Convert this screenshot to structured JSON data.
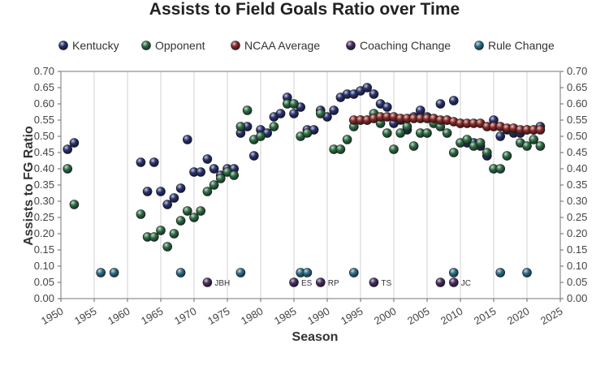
{
  "chart_data": {
    "type": "scatter",
    "title": "Assists to Field Goals Ratio over Time",
    "xlabel": "Season",
    "ylabel": "Assists to FG Ratio",
    "xlim": [
      1950,
      2025
    ],
    "ylim": [
      0,
      0.7
    ],
    "x_ticks": [
      "1950",
      "1955",
      "1960",
      "1965",
      "1970",
      "1975",
      "1980",
      "1985",
      "1990",
      "1995",
      "2000",
      "2005",
      "2010",
      "2015",
      "2020",
      "2025"
    ],
    "y_ticks": [
      "0.00",
      "0.05",
      "0.10",
      "0.15",
      "0.20",
      "0.25",
      "0.30",
      "0.35",
      "0.40",
      "0.45",
      "0.50",
      "0.55",
      "0.60",
      "0.65",
      "0.70"
    ],
    "grid": "vertical",
    "legend_position": "top",
    "colors": {
      "Kentucky": "#2a3470",
      "Opponent": "#2e6e46",
      "NCAA Average": "#8a2a2a",
      "Coaching Change": "#4a2f66",
      "Rule Change": "#2f6f8a"
    },
    "series": [
      {
        "name": "Kentucky",
        "x": [
          1951,
          1952,
          1962,
          1963,
          1964,
          1965,
          1966,
          1967,
          1968,
          1969,
          1970,
          1971,
          1972,
          1973,
          1974,
          1975,
          1976,
          1977,
          1978,
          1979,
          1980,
          1981,
          1982,
          1983,
          1984,
          1985,
          1986,
          1987,
          1988,
          1989,
          1990,
          1991,
          1992,
          1993,
          1994,
          1995,
          1996,
          1997,
          1998,
          1999,
          2000,
          2001,
          2002,
          2003,
          2004,
          2005,
          2006,
          2007,
          2008,
          2009,
          2010,
          2011,
          2012,
          2013,
          2014,
          2015,
          2016,
          2017,
          2018,
          2019,
          2020,
          2021,
          2022
        ],
        "y": [
          0.46,
          0.48,
          0.42,
          0.33,
          0.42,
          0.33,
          0.29,
          0.31,
          0.34,
          0.49,
          0.39,
          0.39,
          0.43,
          0.4,
          0.38,
          0.4,
          0.4,
          0.51,
          0.53,
          0.44,
          0.52,
          0.51,
          0.56,
          0.57,
          0.62,
          0.57,
          0.59,
          0.52,
          0.52,
          0.58,
          0.56,
          0.58,
          0.62,
          0.63,
          0.63,
          0.64,
          0.65,
          0.63,
          0.6,
          0.59,
          0.54,
          0.55,
          0.52,
          0.56,
          0.58,
          0.56,
          0.55,
          0.6,
          0.55,
          0.61,
          0.54,
          0.48,
          0.48,
          0.47,
          0.44,
          0.55,
          0.5,
          0.52,
          0.51,
          0.51,
          0.52,
          0.52,
          0.53
        ]
      },
      {
        "name": "Opponent",
        "x": [
          1951,
          1952,
          1962,
          1963,
          1964,
          1965,
          1966,
          1967,
          1968,
          1969,
          1970,
          1971,
          1972,
          1973,
          1974,
          1975,
          1976,
          1977,
          1978,
          1979,
          1980,
          1982,
          1984,
          1985,
          1986,
          1987,
          1989,
          1991,
          1992,
          1993,
          1994,
          1995,
          1996,
          1997,
          1998,
          1999,
          2000,
          2001,
          2002,
          2003,
          2004,
          2005,
          2006,
          2007,
          2008,
          2009,
          2010,
          2011,
          2012,
          2013,
          2014,
          2015,
          2016,
          2017,
          2018,
          2019,
          2020,
          2021,
          2022
        ],
        "y": [
          0.4,
          0.29,
          0.26,
          0.19,
          0.19,
          0.21,
          0.16,
          0.2,
          0.24,
          0.27,
          0.25,
          0.27,
          0.33,
          0.35,
          0.37,
          0.39,
          0.38,
          0.53,
          0.58,
          0.49,
          0.5,
          0.53,
          0.6,
          0.6,
          0.5,
          0.51,
          0.57,
          0.46,
          0.46,
          0.49,
          0.53,
          0.55,
          0.55,
          0.57,
          0.54,
          0.51,
          0.46,
          0.51,
          0.53,
          0.47,
          0.51,
          0.51,
          0.54,
          0.53,
          0.51,
          0.45,
          0.48,
          0.49,
          0.47,
          0.48,
          0.45,
          0.4,
          0.4,
          0.44,
          0.52,
          0.48,
          0.47,
          0.49,
          0.47
        ]
      },
      {
        "name": "NCAA Average",
        "x": [
          1994,
          1995,
          1996,
          1997,
          1998,
          1999,
          2000,
          2001,
          2002,
          2003,
          2004,
          2005,
          2006,
          2007,
          2008,
          2009,
          2010,
          2011,
          2012,
          2013,
          2014,
          2015,
          2016,
          2017,
          2018,
          2019,
          2020,
          2021,
          2022
        ],
        "y": [
          0.55,
          0.55,
          0.55,
          0.555,
          0.56,
          0.56,
          0.56,
          0.555,
          0.555,
          0.555,
          0.555,
          0.555,
          0.555,
          0.55,
          0.55,
          0.545,
          0.54,
          0.54,
          0.54,
          0.54,
          0.53,
          0.53,
          0.53,
          0.525,
          0.525,
          0.52,
          0.52,
          0.52,
          0.52
        ]
      },
      {
        "name": "Coaching Change",
        "x": [
          1972,
          1985,
          1989,
          1997,
          2007,
          2009
        ],
        "y": [
          0.05,
          0.05,
          0.05,
          0.05,
          0.05,
          0.05
        ],
        "labels": [
          "JBH",
          "ES",
          "RP",
          "TS",
          "",
          "JC"
        ]
      },
      {
        "name": "Rule Change",
        "x": [
          1956,
          1958,
          1968,
          1977,
          1986,
          1987,
          1994,
          2009,
          2016,
          2020
        ],
        "y": [
          0.08,
          0.08,
          0.08,
          0.08,
          0.08,
          0.08,
          0.08,
          0.08,
          0.08,
          0.08
        ]
      }
    ]
  }
}
